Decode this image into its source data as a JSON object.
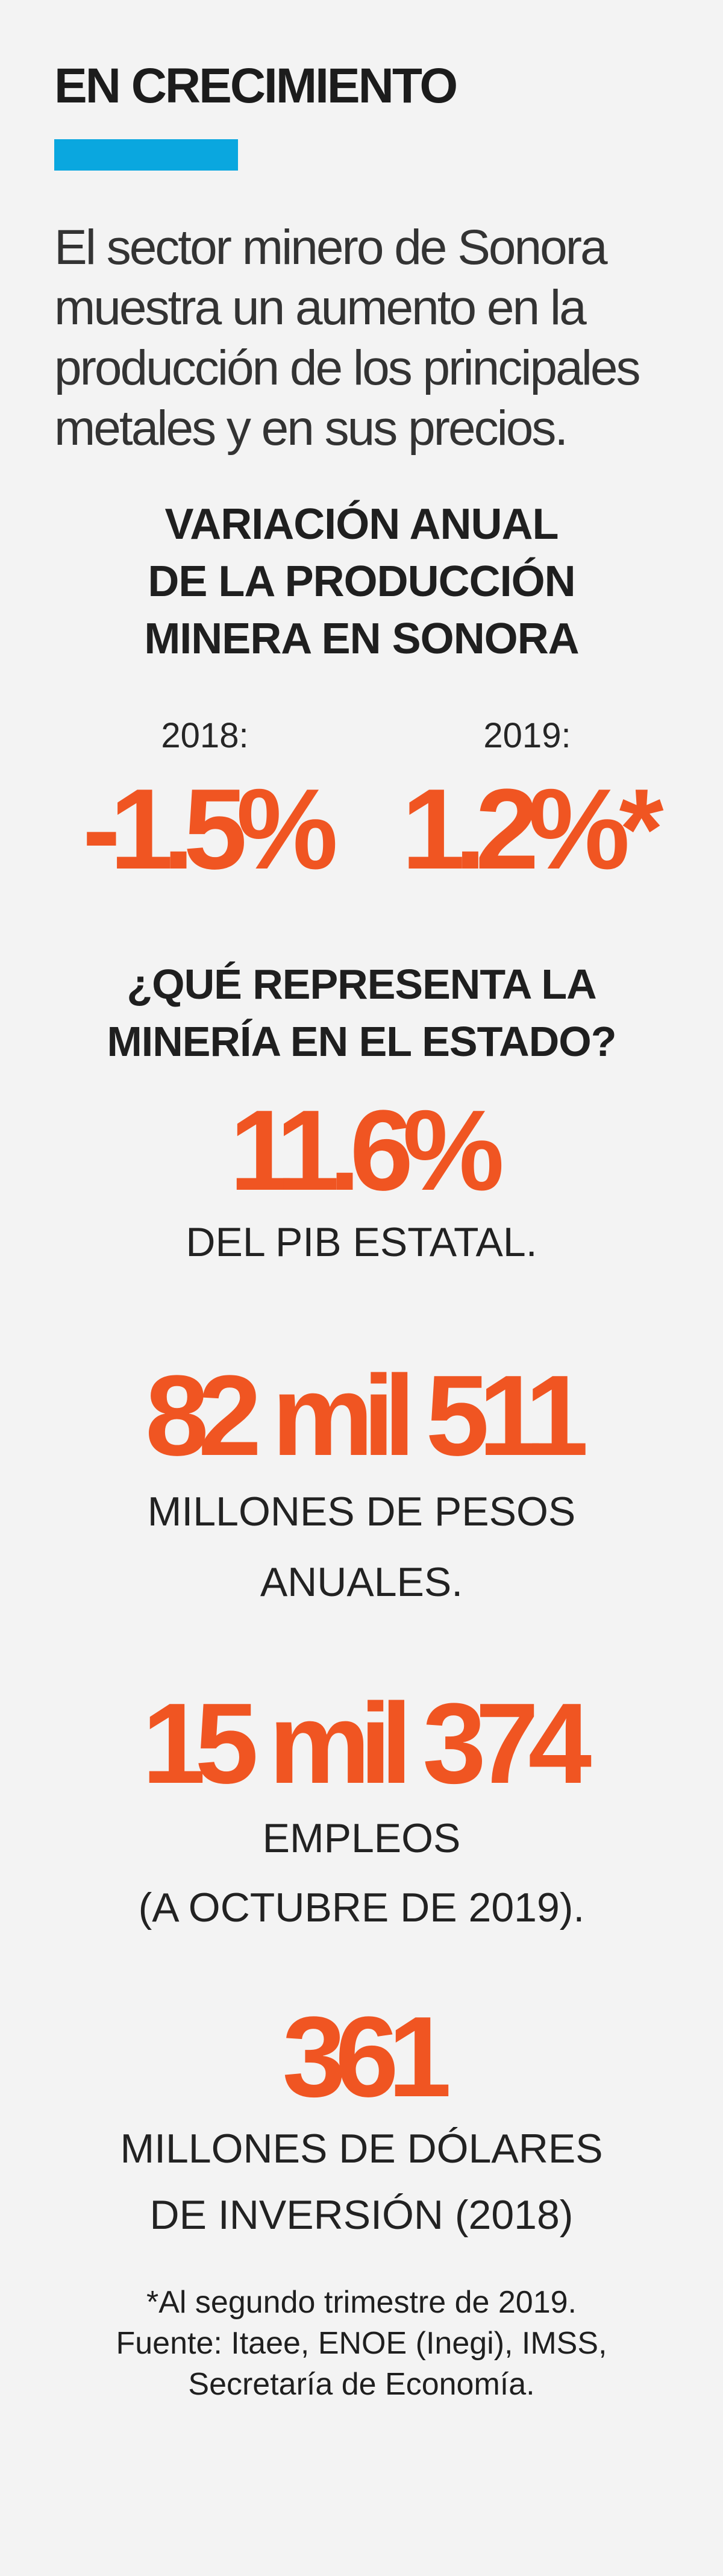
{
  "header": {
    "title": "EN CRECIMIENTO",
    "accent_color": "#0aa7df",
    "intro": "El sector minero de Sonora muestra un aumento en la producción de los principales metales y en sus precios."
  },
  "annual_variation": {
    "title_lines": [
      "VARIACIÓN ANUAL",
      "DE LA PRODUCCIÓN",
      "MINERA EN SONORA"
    ],
    "items": [
      {
        "label": "2018:",
        "value": "-1.5%"
      },
      {
        "label": "2019:",
        "value": "1.2%*"
      }
    ]
  },
  "state_representation": {
    "title_lines": [
      "¿QUÉ REPRESENTA LA",
      "MINERÍA EN EL ESTADO?"
    ],
    "stats": [
      {
        "value": "11.6%",
        "caption_lines": [
          "DEL PIB ESTATAL."
        ]
      },
      {
        "value": "82 mil 511",
        "caption_lines": [
          "MILLONES DE PESOS",
          "ANUALES."
        ]
      },
      {
        "value": "15 mil 374",
        "caption_lines": [
          "EMPLEOS",
          "(A OCTUBRE DE 2019)."
        ]
      },
      {
        "value": "361",
        "caption_lines": [
          "MILLONES DE DÓLARES",
          "DE INVERSIÓN (2018)"
        ]
      }
    ]
  },
  "footnote": {
    "lines": [
      "*Al segundo trimestre de 2019.",
      "Fuente: Itaee, ENOE (Inegi), IMSS,",
      "Secretaría de Economía."
    ]
  },
  "colors": {
    "highlight": "#f05522",
    "background": "#f3f3f3",
    "text": "#222222"
  }
}
